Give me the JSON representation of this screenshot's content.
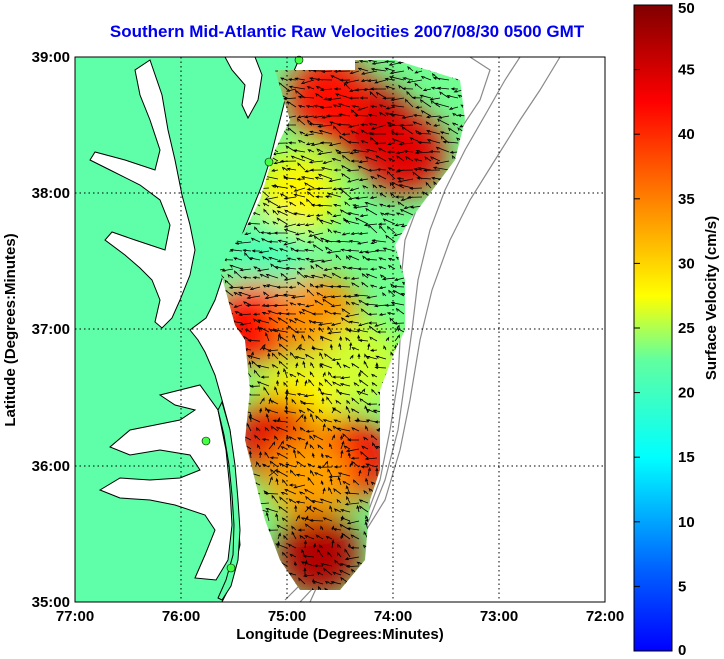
{
  "title": "Southern Mid-Atlantic Raw Velocities 2007/08/30 0500 GMT",
  "chart_data": {
    "type": "map",
    "title": "Southern Mid-Atlantic Raw Velocities 2007/08/30 0500 GMT",
    "xlabel": "Longitude (Degrees:Minutes)",
    "ylabel": "Latitude (Degrees:Minutes)",
    "x_ticks": [
      "77:00",
      "76:00",
      "75:00",
      "74:00",
      "73:00",
      "72:00"
    ],
    "y_ticks": [
      "39:00",
      "38:00",
      "37:00",
      "36:00",
      "35:00"
    ],
    "xlim": [
      -77,
      -72
    ],
    "ylim": [
      35,
      39
    ],
    "grid": true,
    "colorbar": {
      "label": "Surface Velocity (cm/s)",
      "range": [
        0,
        50
      ],
      "ticks": [
        "0",
        "5",
        "10",
        "15",
        "20",
        "25",
        "30",
        "35",
        "40",
        "45",
        "50"
      ],
      "colormap": "jet"
    },
    "regions": [
      {
        "lon": -74.2,
        "lat": 38.5,
        "speed": 46
      },
      {
        "lon": -73.9,
        "lat": 38.3,
        "speed": 44
      },
      {
        "lon": -74.6,
        "lat": 38.7,
        "speed": 42
      },
      {
        "lon": -74.9,
        "lat": 38.0,
        "speed": 28
      },
      {
        "lon": -75.2,
        "lat": 37.5,
        "speed": 21
      },
      {
        "lon": -75.3,
        "lat": 37.05,
        "speed": 42
      },
      {
        "lon": -74.7,
        "lat": 37.1,
        "speed": 34
      },
      {
        "lon": -74.3,
        "lat": 36.75,
        "speed": 26
      },
      {
        "lon": -74.9,
        "lat": 36.45,
        "speed": 28
      },
      {
        "lon": -75.1,
        "lat": 36.2,
        "speed": 44
      },
      {
        "lon": -74.4,
        "lat": 36.05,
        "speed": 43
      },
      {
        "lon": -74.8,
        "lat": 35.9,
        "speed": 33
      },
      {
        "lon": -74.7,
        "lat": 35.35,
        "speed": 47
      }
    ]
  }
}
